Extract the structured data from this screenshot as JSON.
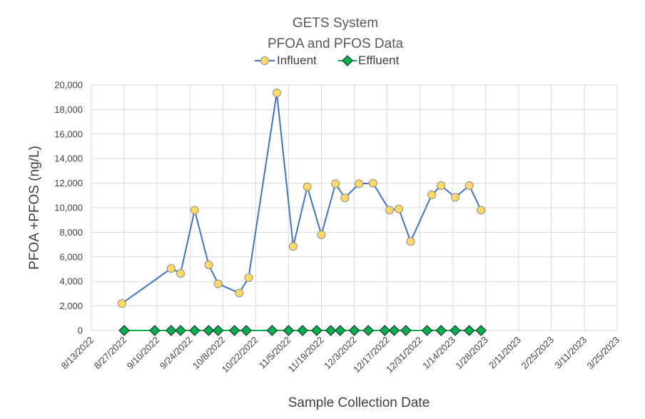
{
  "chart_data": {
    "type": "line",
    "title": "GETS System",
    "subtitle": "PFOA and PFOS Data",
    "xlabel": "Sample Collection Date",
    "ylabel": "PFOA +PFOS (ng/L)",
    "x_ticks": [
      "8/13/2022",
      "8/27/2022",
      "9/10/2022",
      "9/24/2022",
      "10/8/2022",
      "10/22/2022",
      "11/5/2022",
      "11/19/2022",
      "12/3/2022",
      "12/17/2022",
      "12/31/2022",
      "1/14/2023",
      "1/28/2023",
      "2/11/2023",
      "2/25/2023",
      "3/11/2023",
      "3/25/2023"
    ],
    "xlim": [
      "8/13/2022",
      "3/25/2023"
    ],
    "y_ticks": [
      "0",
      "2,000",
      "4,000",
      "6,000",
      "8,000",
      "10,000",
      "12,000",
      "14,000",
      "16,000",
      "18,000",
      "20,000"
    ],
    "ylim": [
      0,
      20000
    ],
    "grid": true,
    "legend_position": "top",
    "series": [
      {
        "name": "Influent",
        "line_color": "#4472c4",
        "marker": "circle",
        "marker_fill": "#ffd966",
        "marker_stroke": "#8c8c8c",
        "points": [
          {
            "x": "2022-08-26",
            "y": 2200
          },
          {
            "x": "2022-09-16",
            "y": 5050
          },
          {
            "x": "2022-09-20",
            "y": 4650
          },
          {
            "x": "2022-09-26",
            "y": 9800
          },
          {
            "x": "2022-10-02",
            "y": 5350
          },
          {
            "x": "2022-10-06",
            "y": 3800
          },
          {
            "x": "2022-10-15",
            "y": 3050
          },
          {
            "x": "2022-10-19",
            "y": 4300
          },
          {
            "x": "2022-10-31",
            "y": 19350
          },
          {
            "x": "2022-11-07",
            "y": 6850
          },
          {
            "x": "2022-11-13",
            "y": 11700
          },
          {
            "x": "2022-11-19",
            "y": 7800
          },
          {
            "x": "2022-11-25",
            "y": 11950
          },
          {
            "x": "2022-11-29",
            "y": 10800
          },
          {
            "x": "2022-12-05",
            "y": 11950
          },
          {
            "x": "2022-12-11",
            "y": 12000
          },
          {
            "x": "2022-12-18",
            "y": 9800
          },
          {
            "x": "2022-12-22",
            "y": 9900
          },
          {
            "x": "2022-12-27",
            "y": 7250
          },
          {
            "x": "2023-01-05",
            "y": 11050
          },
          {
            "x": "2023-01-09",
            "y": 11800
          },
          {
            "x": "2023-01-15",
            "y": 10850
          },
          {
            "x": "2023-01-21",
            "y": 11800
          },
          {
            "x": "2023-01-26",
            "y": 9800
          }
        ]
      },
      {
        "name": "Effluent",
        "line_color": "#00b050",
        "marker": "diamond",
        "marker_fill": "#00b050",
        "marker_stroke": "#1a1a1a",
        "points": [
          {
            "x": "2022-08-27",
            "y": 0
          },
          {
            "x": "2022-09-09",
            "y": 0
          },
          {
            "x": "2022-09-16",
            "y": 0
          },
          {
            "x": "2022-09-20",
            "y": 0
          },
          {
            "x": "2022-09-26",
            "y": 0
          },
          {
            "x": "2022-10-02",
            "y": 0
          },
          {
            "x": "2022-10-06",
            "y": 0
          },
          {
            "x": "2022-10-13",
            "y": 0
          },
          {
            "x": "2022-10-18",
            "y": 0
          },
          {
            "x": "2022-10-29",
            "y": 0
          },
          {
            "x": "2022-11-05",
            "y": 0
          },
          {
            "x": "2022-11-11",
            "y": 0
          },
          {
            "x": "2022-11-17",
            "y": 0
          },
          {
            "x": "2022-11-23",
            "y": 0
          },
          {
            "x": "2022-11-27",
            "y": 0
          },
          {
            "x": "2022-12-03",
            "y": 0
          },
          {
            "x": "2022-12-09",
            "y": 0
          },
          {
            "x": "2022-12-16",
            "y": 0
          },
          {
            "x": "2022-12-20",
            "y": 0
          },
          {
            "x": "2022-12-25",
            "y": 0
          },
          {
            "x": "2023-01-03",
            "y": 0
          },
          {
            "x": "2023-01-09",
            "y": 0
          },
          {
            "x": "2023-01-15",
            "y": 0
          },
          {
            "x": "2023-01-21",
            "y": 0
          },
          {
            "x": "2023-01-26",
            "y": 0
          }
        ]
      }
    ]
  }
}
